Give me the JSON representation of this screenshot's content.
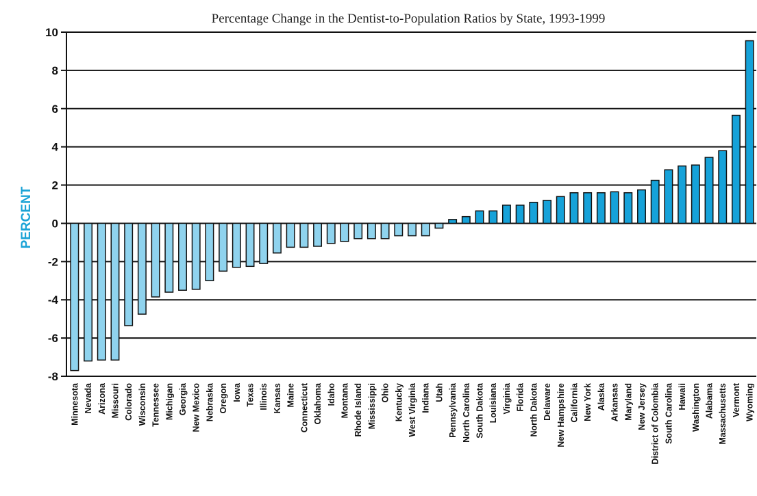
{
  "chart_data": {
    "type": "bar",
    "title": "Percentage Change in the Dentist-to-Population Ratios by State, 1993-1999",
    "xlabel": "",
    "ylabel": "PERCENT",
    "ylim": [
      -8,
      10
    ],
    "yticks": [
      "10",
      "8",
      "6",
      "4",
      "2",
      "0",
      "-2",
      "-4",
      "-6",
      "-8"
    ],
    "grid": true,
    "colors": {
      "negative": "#8fd3ee",
      "positive": "#16a2d9",
      "outline": "#111111"
    },
    "categories": [
      "Minnesota",
      "Nevada",
      "Arizona",
      "Missouri",
      "Colorado",
      "Wisconsin",
      "Tennessee",
      "Michigan",
      "Georgia",
      "New Mexico",
      "Nebraska",
      "Oregon",
      "Iowa",
      "Texas",
      "Illinois",
      "Kansas",
      "Maine",
      "Connecticut",
      "Oklahoma",
      "Idaho",
      "Montana",
      "Rhode Island",
      "Mississippi",
      "Ohio",
      "Kentucky",
      "West Virginia",
      "Indiana",
      "Utah",
      "Pennsylvania",
      "North Carolina",
      "South Dakota",
      "Louisiana",
      "Virginia",
      "Florida",
      "North Dakota",
      "Delaware",
      "New Hampshire",
      "California",
      "New York",
      "Alaska",
      "Arkansas",
      "Maryland",
      "New Jersey",
      "District of Colombia",
      "South Carolina",
      "Hawaii",
      "Washington",
      "Alabama",
      "Massachusetts",
      "Vermont",
      "Wyoming"
    ],
    "values": [
      -7.7,
      -7.2,
      -7.15,
      -7.15,
      -5.35,
      -4.75,
      -3.85,
      -3.6,
      -3.5,
      -3.45,
      -3.0,
      -2.5,
      -2.3,
      -2.25,
      -2.1,
      -1.55,
      -1.25,
      -1.25,
      -1.2,
      -1.05,
      -0.95,
      -0.8,
      -0.8,
      -0.8,
      -0.65,
      -0.65,
      -0.65,
      -0.25,
      0.2,
      0.35,
      0.65,
      0.65,
      0.95,
      0.95,
      1.1,
      1.2,
      1.4,
      1.6,
      1.6,
      1.6,
      1.65,
      1.6,
      1.75,
      2.25,
      2.8,
      3.0,
      3.05,
      3.45,
      3.8,
      5.65,
      9.55
    ]
  }
}
